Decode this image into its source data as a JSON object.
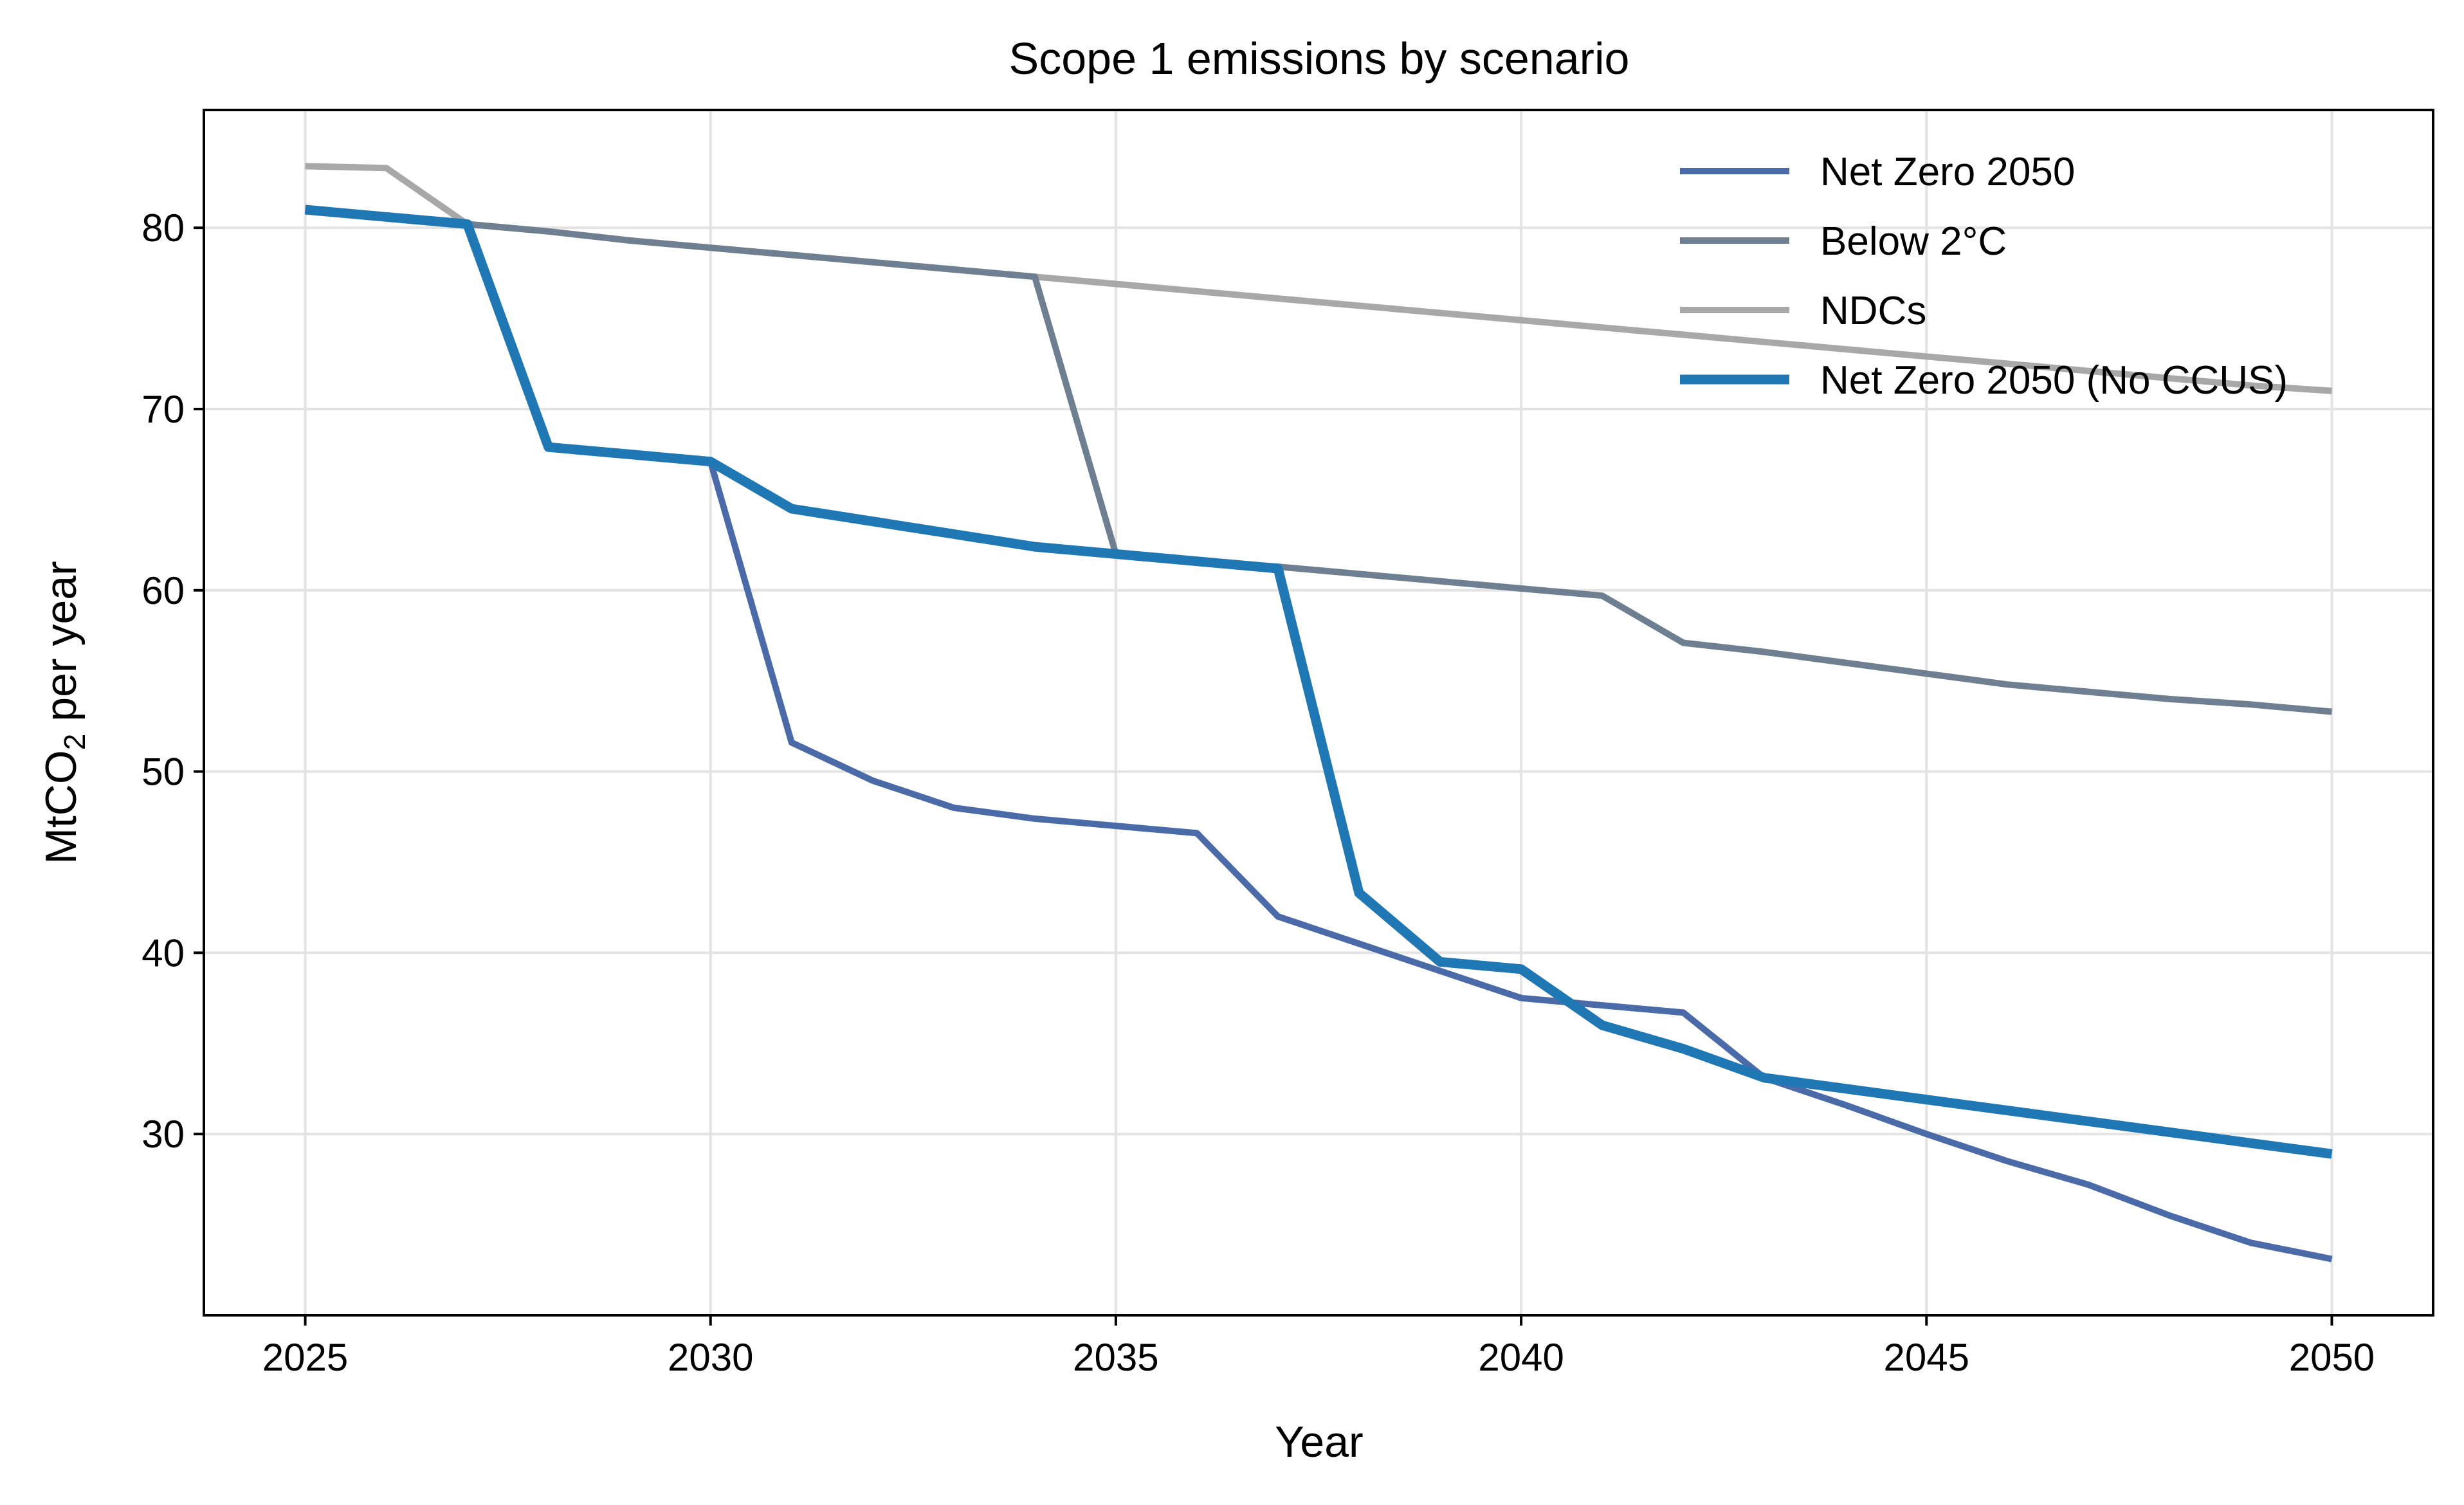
{
  "chart_data": {
    "type": "line",
    "title": "Scope 1 emissions by scenario",
    "xlabel": "Year",
    "ylabel": "MtCO",
    "ylabel_subscript": "2",
    "ylabel_suffix": " per year",
    "xlim": [
      2023.75,
      2051.25
    ],
    "ylim": [
      20.0,
      86.5
    ],
    "xticks": [
      2025,
      2030,
      2035,
      2040,
      2045,
      2050
    ],
    "yticks": [
      30,
      40,
      50,
      60,
      70,
      80
    ],
    "grid": true,
    "legend_position": "top-right",
    "x": [
      2025,
      2026,
      2027,
      2028,
      2029,
      2030,
      2031,
      2032,
      2033,
      2034,
      2035,
      2036,
      2037,
      2038,
      2039,
      2040,
      2041,
      2042,
      2043,
      2044,
      2045,
      2046,
      2047,
      2048,
      2049,
      2050
    ],
    "series": [
      {
        "name": "Net Zero 2050",
        "color": "#4a6aa8",
        "values": [
          81.0,
          80.6,
          80.2,
          67.9,
          67.5,
          67.1,
          51.6,
          49.5,
          48.0,
          47.4,
          47.0,
          46.6,
          42.0,
          40.5,
          39.0,
          37.5,
          37.1,
          36.7,
          33.1,
          31.6,
          30.0,
          28.5,
          27.2,
          25.5,
          24.0,
          23.1
        ]
      },
      {
        "name": "Below 2°C",
        "color": "#6e7f91",
        "values": [
          81.0,
          80.6,
          80.2,
          79.8,
          79.3,
          78.9,
          78.5,
          78.1,
          77.7,
          77.3,
          62.0,
          61.6,
          61.3,
          60.9,
          60.5,
          60.1,
          59.7,
          57.1,
          56.6,
          56.0,
          55.4,
          54.8,
          54.4,
          54.0,
          53.7,
          53.3
        ]
      },
      {
        "name": "NDCs",
        "color": "#a8a8a8",
        "values": [
          83.4,
          83.3,
          80.2,
          79.8,
          79.3,
          78.9,
          78.5,
          78.1,
          77.7,
          77.3,
          76.9,
          76.5,
          76.1,
          75.7,
          75.3,
          74.9,
          74.5,
          74.1,
          73.7,
          73.3,
          72.9,
          72.5,
          72.1,
          71.7,
          71.3,
          71.0
        ]
      },
      {
        "name": "Net Zero 2050 (No CCUS)",
        "color": "#1f77b4",
        "values": [
          81.0,
          80.6,
          80.2,
          67.9,
          67.5,
          67.1,
          64.5,
          63.8,
          63.1,
          62.4,
          62.0,
          61.6,
          61.2,
          43.3,
          39.5,
          39.1,
          36.0,
          34.7,
          33.1,
          32.5,
          31.9,
          31.3,
          30.7,
          30.1,
          29.5,
          28.9
        ]
      }
    ]
  }
}
